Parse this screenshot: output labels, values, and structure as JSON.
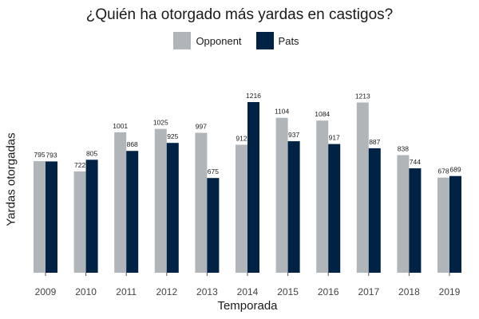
{
  "chart_data": {
    "type": "bar",
    "title": "¿Quién ha otorgado más yardas en castigos?",
    "xlabel": "Temporada",
    "ylabel": "Yardas otorgadas",
    "categories": [
      "2009",
      "2010",
      "2011",
      "2012",
      "2013",
      "2014",
      "2015",
      "2016",
      "2017",
      "2018",
      "2019"
    ],
    "series": [
      {
        "name": "Opponent",
        "color": "#b0b5ba",
        "values": [
          795,
          722,
          1001,
          1025,
          997,
          912,
          1104,
          1084,
          1213,
          838,
          678
        ]
      },
      {
        "name": "Pats",
        "color": "#002244",
        "values": [
          793,
          805,
          868,
          925,
          675,
          1216,
          937,
          917,
          887,
          744,
          689
        ]
      }
    ],
    "ylim": [
      0,
      1300
    ],
    "grid": false,
    "legend_position": "top"
  }
}
